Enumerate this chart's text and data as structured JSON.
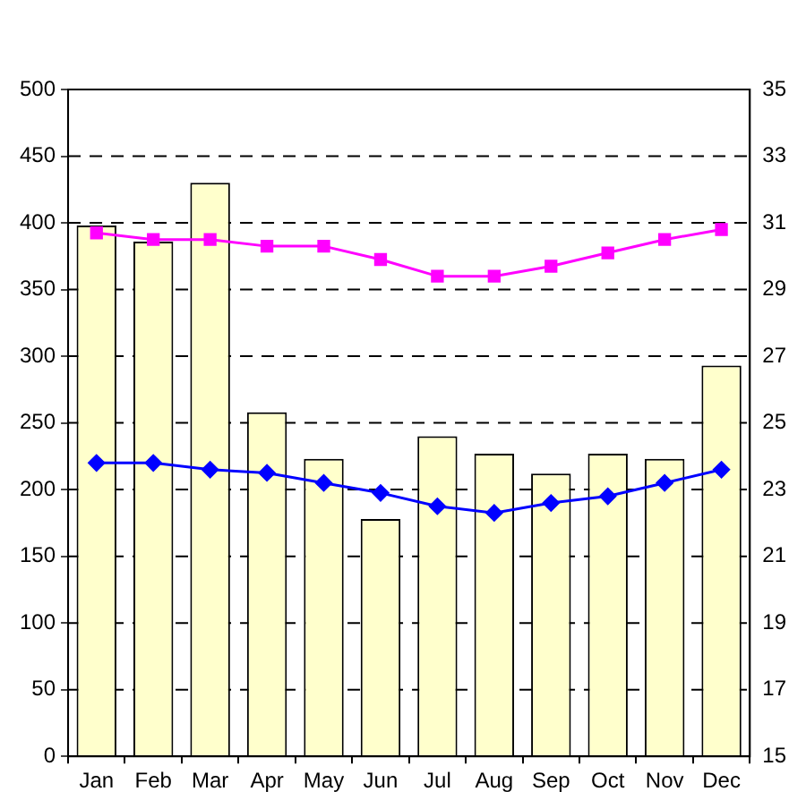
{
  "chart_data": {
    "type": "bar",
    "categories": [
      "Jan",
      "Feb",
      "Mar",
      "Apr",
      "May",
      "Jun",
      "Jul",
      "Aug",
      "Sep",
      "Oct",
      "Nov",
      "Dec"
    ],
    "series": [
      {
        "color": "#ffffcc",
        "values": [
          398,
          386,
          430,
          258,
          223,
          178,
          240,
          227,
          212,
          227,
          223,
          293
        ]
      },
      {
        "type": "line",
        "axis": "y2",
        "color": "#ff00ff",
        "marker": "square",
        "values": [
          30.7,
          30.5,
          30.5,
          30.3,
          30.3,
          29.9,
          29.4,
          29.4,
          29.7,
          30.1,
          30.5,
          30.8
        ]
      },
      {
        "type": "line",
        "axis": "y2",
        "color": "#0000ff",
        "marker": "diamond",
        "values": [
          23.8,
          23.8,
          23.6,
          23.5,
          23.2,
          22.9,
          22.5,
          22.3,
          22.6,
          22.8,
          23.2,
          23.6
        ]
      }
    ],
    "ylim": [
      0,
      500
    ],
    "yticks": [
      0,
      50,
      100,
      150,
      200,
      250,
      300,
      350,
      400,
      450,
      500
    ],
    "y2lim": [
      15,
      35
    ],
    "y2ticks": [
      15,
      17,
      19,
      21,
      23,
      25,
      27,
      29,
      31,
      33,
      35
    ],
    "grid": "y",
    "line_style": "solid"
  }
}
